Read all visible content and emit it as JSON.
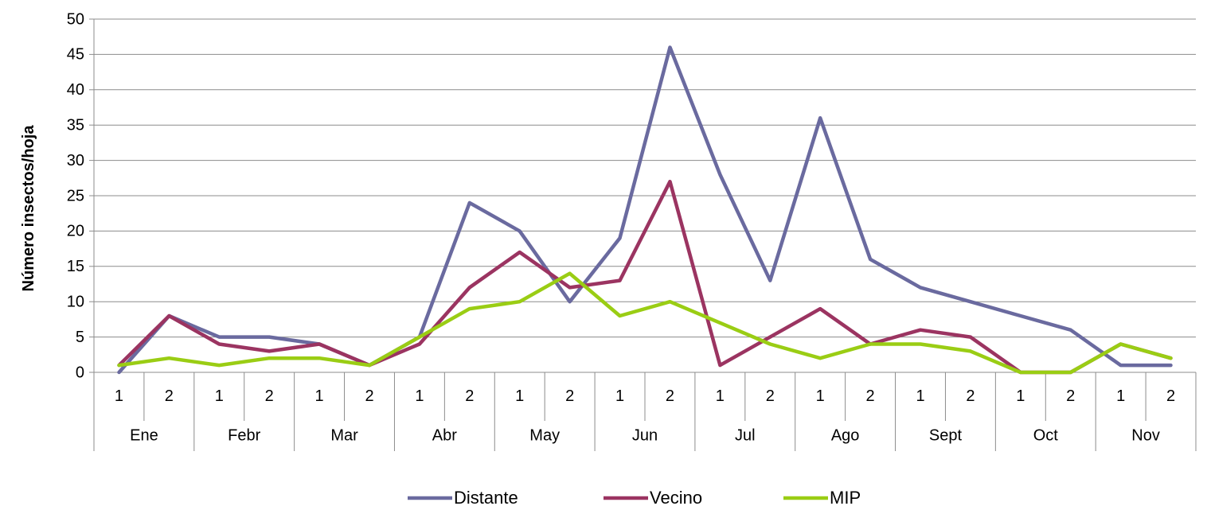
{
  "chart_data": {
    "type": "line",
    "ylabel": "Número insectos/hoja",
    "xlabel": "",
    "ylim": [
      0,
      50
    ],
    "yticks": [
      0,
      5,
      10,
      15,
      20,
      25,
      30,
      35,
      40,
      45,
      50
    ],
    "grid": true,
    "legend_position": "bottom",
    "months": [
      "Ene",
      "Febr",
      "Mar",
      "Abr",
      "May",
      "Jun",
      "Jul",
      "Ago",
      "Sept",
      "Oct",
      "Nov"
    ],
    "sub_labels": [
      "1",
      "2"
    ],
    "series": [
      {
        "name": "Distante",
        "color": "#6a6a9f",
        "values": [
          0,
          8,
          5,
          5,
          4,
          1,
          5,
          24,
          20,
          10,
          19,
          46,
          28,
          13,
          36,
          16,
          12,
          10,
          8,
          6,
          1,
          1
        ]
      },
      {
        "name": "Vecino",
        "color": "#9b3461",
        "values": [
          1,
          8,
          4,
          3,
          4,
          1,
          4,
          12,
          17,
          12,
          13,
          27,
          1,
          5,
          9,
          4,
          6,
          5,
          0,
          0,
          4,
          2
        ]
      },
      {
        "name": "MIP",
        "color": "#9acd14",
        "values": [
          1,
          2,
          1,
          2,
          2,
          1,
          5,
          9,
          10,
          14,
          8,
          10,
          7,
          4,
          2,
          4,
          4,
          3,
          0,
          0,
          4,
          2
        ]
      }
    ]
  }
}
